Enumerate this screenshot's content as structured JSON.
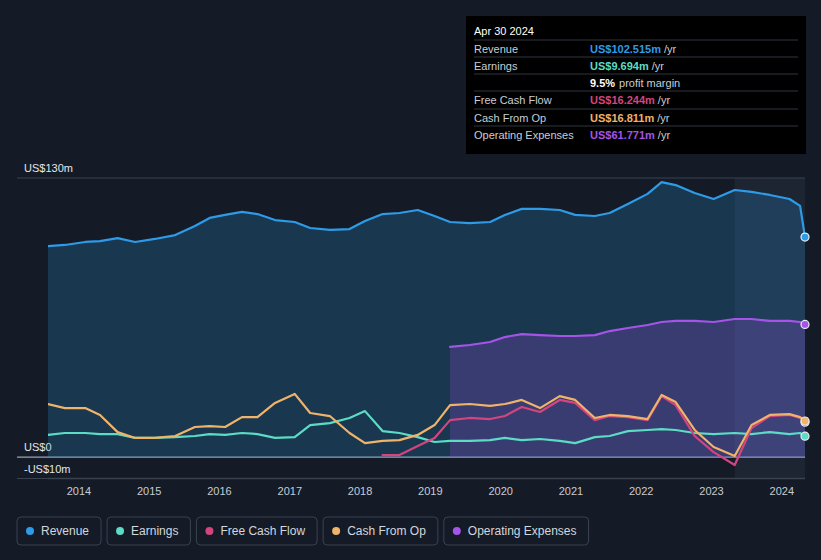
{
  "chart_data": {
    "type": "line",
    "x": [
      2013.56,
      2013.8,
      2014.09,
      2014.3,
      2014.55,
      2014.8,
      2015.08,
      2015.37,
      2015.65,
      2015.86,
      2016.08,
      2016.32,
      2016.54,
      2016.79,
      2017.07,
      2017.29,
      2017.57,
      2017.85,
      2018.07,
      2018.32,
      2018.56,
      2018.82,
      2019.06,
      2019.28,
      2019.56,
      2019.85,
      2020.06,
      2020.3,
      2020.56,
      2020.84,
      2021.06,
      2021.34,
      2021.55,
      2021.81,
      2022.09,
      2022.29,
      2022.49,
      2022.76,
      2023.03,
      2023.33,
      2023.57,
      2023.83,
      2024.11,
      2024.26,
      2024.33
    ],
    "xlim": [
      2013.56,
      2024.33
    ],
    "xticks": [
      2014,
      2015,
      2016,
      2017,
      2018,
      2019,
      2020,
      2021,
      2022,
      2023,
      2024
    ],
    "ylim": [
      -10,
      130
    ],
    "yticks": [
      {
        "value": -10,
        "label": "-US$10m"
      },
      {
        "value": 0,
        "label": "US$0"
      },
      {
        "value": 130,
        "label": "US$130m"
      }
    ],
    "grid": true,
    "legend": "bottom",
    "series": [
      {
        "name": "Revenue",
        "color": "#2d9be8",
        "type": "area",
        "values": [
          98.3,
          98.8,
          100.2,
          100.6,
          102,
          100.2,
          101.6,
          103.4,
          107.6,
          111.4,
          112.8,
          114.2,
          113.2,
          110.4,
          109.5,
          106.7,
          105.8,
          106.2,
          110,
          113.2,
          113.7,
          115.1,
          112.3,
          109.5,
          109,
          109.5,
          112.8,
          115.6,
          115.6,
          115.1,
          112.8,
          112.3,
          113.7,
          117.9,
          122.6,
          128.1,
          126.7,
          123,
          120.2,
          124.4,
          123.5,
          122.1,
          120.2,
          117,
          102.5
        ]
      },
      {
        "name": "Earnings",
        "color": "#5cdcc4",
        "type": "line",
        "values": [
          10.3,
          11.2,
          11.2,
          10.7,
          10.7,
          8.9,
          8.9,
          9.3,
          9.8,
          10.7,
          10.3,
          11.2,
          10.7,
          8.9,
          9.3,
          14.9,
          15.8,
          18.2,
          21.4,
          12.1,
          11.2,
          9.3,
          7,
          7.5,
          7.5,
          7.9,
          8.9,
          7.9,
          8.4,
          7.5,
          6.5,
          9.3,
          9.8,
          12.1,
          12.6,
          13,
          12.6,
          11.2,
          10.7,
          11.2,
          10.7,
          11.6,
          10.7,
          11.2,
          9.7
        ]
      },
      {
        "name": "Free Cash Flow",
        "color": "#d4457f",
        "type": "line",
        "values": [
          null,
          null,
          null,
          null,
          null,
          null,
          null,
          null,
          null,
          null,
          null,
          null,
          null,
          null,
          null,
          null,
          null,
          null,
          null,
          0.9,
          0.9,
          5.1,
          8.9,
          17.2,
          18.2,
          17.7,
          19.1,
          23.3,
          21,
          26.6,
          25.2,
          17.2,
          19.1,
          18.6,
          17.2,
          28.4,
          24.2,
          9.8,
          2.3,
          -3.7,
          13.5,
          19.1,
          19.6,
          18.2,
          16.2
        ]
      },
      {
        "name": "Cash From Op",
        "color": "#f0b36a",
        "type": "line",
        "values": [
          24.7,
          22.8,
          22.8,
          19.6,
          11.6,
          8.9,
          8.9,
          9.8,
          14,
          14.4,
          14,
          18.6,
          18.6,
          25.2,
          29.4,
          20.5,
          19.1,
          11.2,
          6.5,
          7.5,
          7.9,
          10.3,
          14.9,
          24.2,
          24.7,
          23.8,
          24.7,
          26.6,
          22.8,
          28.4,
          26.6,
          18.2,
          19.6,
          19.1,
          17.7,
          28.9,
          25.6,
          12.6,
          4.7,
          0.5,
          14.9,
          19.6,
          20,
          18.6,
          16.8
        ]
      },
      {
        "name": "Operating Expenses",
        "color": "#a553e8",
        "type": "area",
        "values": [
          null,
          null,
          null,
          null,
          null,
          null,
          null,
          null,
          null,
          null,
          null,
          null,
          null,
          null,
          null,
          null,
          null,
          null,
          null,
          null,
          null,
          null,
          null,
          51.3,
          52.2,
          53.6,
          55.9,
          57.3,
          56.8,
          56.4,
          56.4,
          56.8,
          58.7,
          60.1,
          61.5,
          62.9,
          63.4,
          63.4,
          62.9,
          64.3,
          64.3,
          63.4,
          63.4,
          62.9,
          61.8
        ]
      }
    ],
    "annotations": {
      "title": "Apr 30 2024",
      "rows": [
        {
          "label": "Revenue",
          "value": "US$102.515m",
          "unit": "/yr",
          "color": "#2d9be8"
        },
        {
          "label": "Earnings",
          "value": "US$9.694m",
          "unit": "/yr",
          "color": "#5cdcc4"
        },
        {
          "value": "9.5%",
          "label": "profit margin",
          "color": "#ffffff"
        },
        {
          "label": "Free Cash Flow",
          "value": "US$16.244m",
          "unit": "/yr",
          "color": "#d4457f"
        },
        {
          "label": "Cash From Op",
          "value": "US$16.811m",
          "unit": "/yr",
          "color": "#f0b36a"
        },
        {
          "label": "Operating Expenses",
          "value": "US$61.771m",
          "unit": "/yr",
          "color": "#a553e8"
        }
      ]
    }
  }
}
